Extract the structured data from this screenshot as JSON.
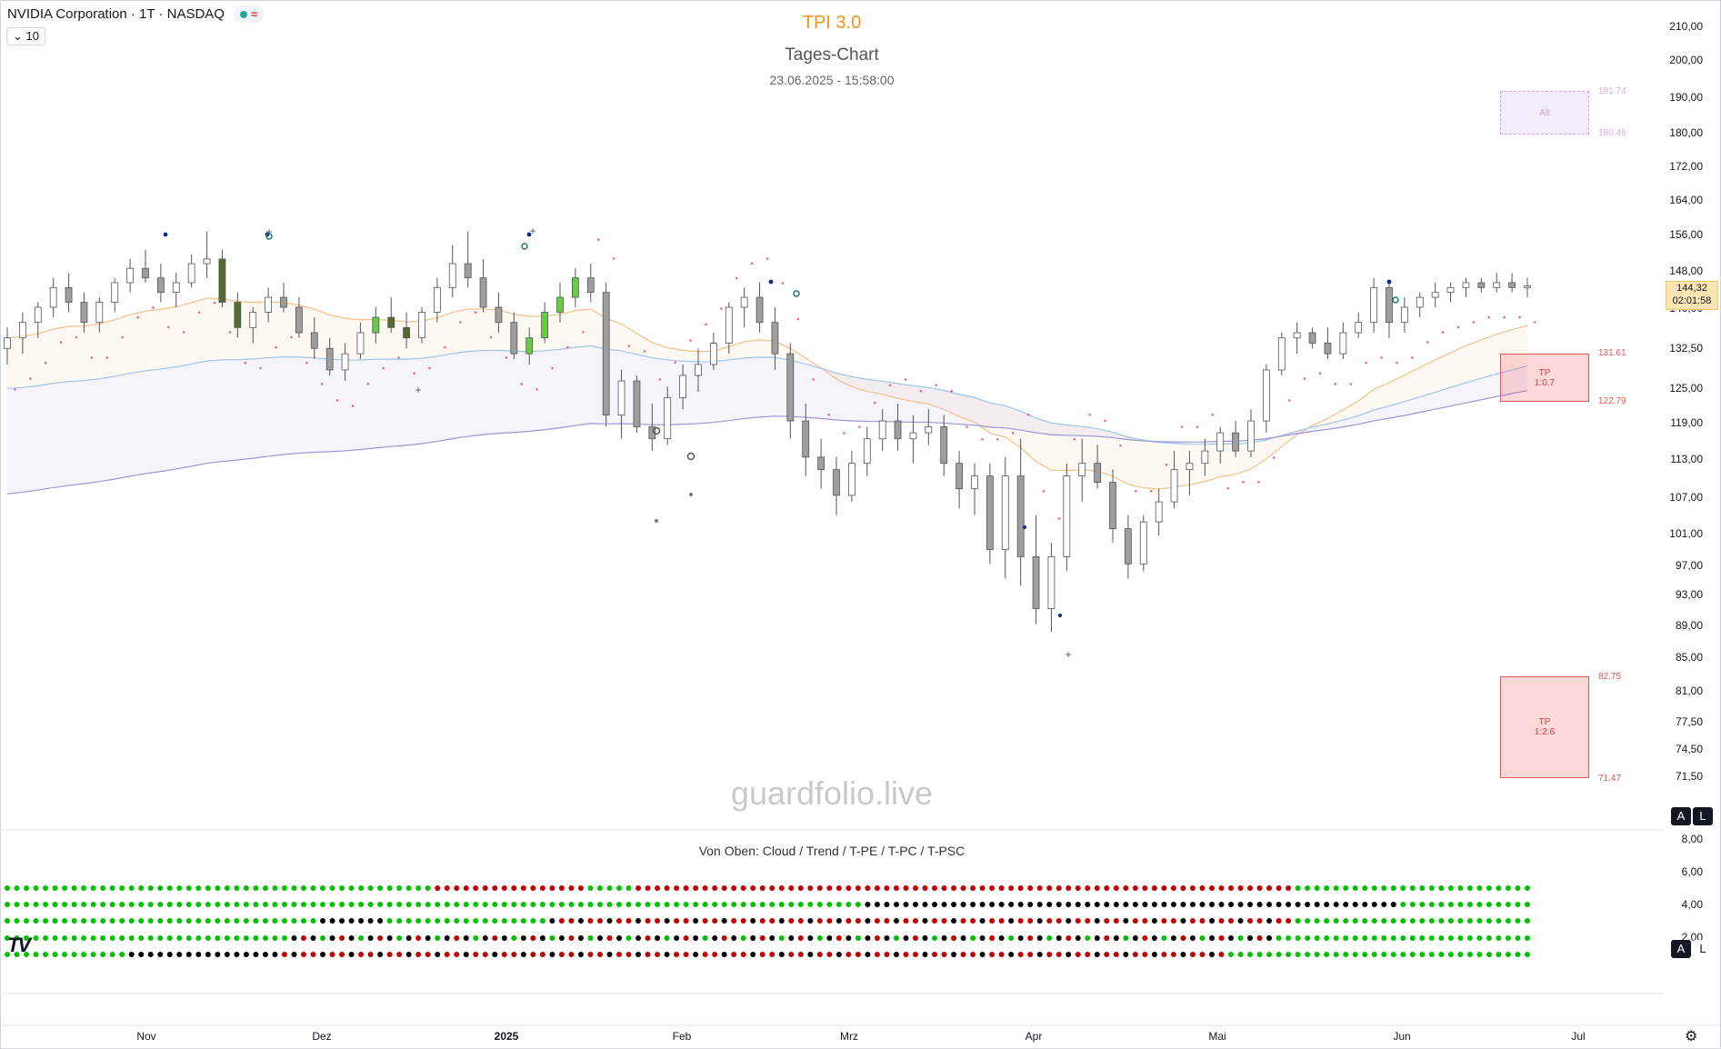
{
  "header": {
    "symbol": "NVIDIA Corporation · 1T · NASDAQ",
    "collapse_label": "10",
    "indicator_name": "TPI 3.0",
    "chart_kind": "Tages-Chart",
    "timestamp": "23.06.2025 - 15:58:00"
  },
  "watermark": "guardfolio.live",
  "indicator_pane": {
    "title": "Von Oben: Cloud / Trend / T-PE / T-PC / T-PSC",
    "y_ticks": [
      "8,00",
      "6,00",
      "4,00",
      "2,00"
    ]
  },
  "price_axis": {
    "ticks": [
      "210,00",
      "200,00",
      "190,00",
      "180,00",
      "172,00",
      "164,00",
      "156,00",
      "148,00",
      "140,00",
      "132,50",
      "125,00",
      "119,00",
      "113,00",
      "107,00",
      "101,00",
      "97,00",
      "93,00",
      "89,00",
      "85,00",
      "81,00",
      "77,50",
      "74,50",
      "71,50"
    ],
    "last_price": "144,32",
    "countdown": "02:01:58"
  },
  "time_axis": {
    "labels": [
      "Nov",
      "Dez",
      "2025",
      "Feb",
      "Mrz",
      "Apr",
      "Mai",
      "Jun",
      "Jul"
    ]
  },
  "zones": {
    "alt": {
      "label": "Alt",
      "top": "191.74",
      "bottom": "180.46"
    },
    "tp1": {
      "label": "TP\n1:0.7",
      "top": "131.61",
      "bottom": "122.79"
    },
    "tp2": {
      "label": "TP\n1:2.6",
      "top": "82.75",
      "bottom": "71.47"
    }
  },
  "buttons": {
    "auto": "A",
    "log": "L"
  },
  "colors": {
    "accent": "#f7931a",
    "green": "#00c000",
    "red": "#c00000",
    "black": "#000000",
    "candle_up": "#ffffff",
    "candle_down": "#9e9e9e",
    "bull_bar": "#66cc44",
    "bear_bar": "#556b2f",
    "trail": "#f06292",
    "ema_orange": "#f6bf8a",
    "ema_blue": "#9fc5e8",
    "ema_purple": "#9b95d9"
  },
  "chart_data": {
    "type": "candlestick",
    "title": "TPI 3.0",
    "ylim": [
      63,
      215
    ],
    "y_scale": "log",
    "candles_approx": [
      [
        132,
        136,
        129,
        134
      ],
      [
        134,
        139,
        131,
        137
      ],
      [
        137,
        141,
        134,
        140
      ],
      [
        140,
        146,
        138,
        144
      ],
      [
        144,
        147,
        139,
        141
      ],
      [
        141,
        143,
        135,
        137
      ],
      [
        137,
        142,
        135,
        141
      ],
      [
        141,
        146,
        139,
        145
      ],
      [
        145,
        150,
        143,
        148
      ],
      [
        148,
        152,
        145,
        146
      ],
      [
        146,
        149,
        141,
        143
      ],
      [
        143,
        147,
        140,
        145
      ],
      [
        145,
        151,
        144,
        149
      ],
      [
        149,
        156,
        146,
        150
      ],
      [
        150,
        152,
        140,
        141
      ],
      [
        141,
        143,
        134,
        136
      ],
      [
        136,
        140,
        133,
        139
      ],
      [
        139,
        144,
        137,
        142
      ],
      [
        142,
        145,
        139,
        140
      ],
      [
        140,
        142,
        134,
        135
      ],
      [
        135,
        138,
        130,
        132
      ],
      [
        132,
        134,
        127,
        128
      ],
      [
        128,
        133,
        126,
        131
      ],
      [
        131,
        137,
        130,
        135
      ],
      [
        135,
        140,
        133,
        138
      ],
      [
        138,
        142,
        135,
        136
      ],
      [
        136,
        139,
        132,
        134
      ],
      [
        134,
        140,
        133,
        139
      ],
      [
        139,
        146,
        137,
        144
      ],
      [
        144,
        153,
        142,
        149
      ],
      [
        149,
        156,
        144,
        146
      ],
      [
        146,
        150,
        139,
        140
      ],
      [
        140,
        143,
        135,
        137
      ],
      [
        137,
        139,
        130,
        131
      ],
      [
        131,
        136,
        129,
        134
      ],
      [
        134,
        141,
        133,
        139
      ],
      [
        139,
        145,
        137,
        142
      ],
      [
        142,
        148,
        140,
        146
      ],
      [
        146,
        149,
        141,
        143
      ],
      [
        143,
        145,
        118,
        120
      ],
      [
        120,
        128,
        116,
        126
      ],
      [
        126,
        127,
        117,
        118
      ],
      [
        118,
        122,
        114,
        116
      ],
      [
        116,
        125,
        115,
        123
      ],
      [
        123,
        129,
        121,
        127
      ],
      [
        127,
        132,
        124,
        129
      ],
      [
        129,
        135,
        128,
        133
      ],
      [
        133,
        141,
        131,
        140
      ],
      [
        140,
        144,
        136,
        142
      ],
      [
        142,
        145,
        135,
        137
      ],
      [
        137,
        140,
        128,
        131
      ],
      [
        131,
        133,
        116,
        119
      ],
      [
        119,
        122,
        110,
        113
      ],
      [
        113,
        116,
        108,
        111
      ],
      [
        111,
        113,
        104,
        107
      ],
      [
        107,
        114,
        106,
        112
      ],
      [
        112,
        118,
        110,
        116
      ],
      [
        116,
        121,
        114,
        119
      ],
      [
        119,
        122,
        114,
        116
      ],
      [
        116,
        120,
        112,
        117
      ],
      [
        117,
        121,
        115,
        118
      ],
      [
        118,
        120,
        110,
        112
      ],
      [
        112,
        114,
        105,
        108
      ],
      [
        108,
        112,
        104,
        110
      ],
      [
        110,
        112,
        97,
        99
      ],
      [
        99,
        113,
        95,
        110
      ],
      [
        110,
        116,
        94,
        98
      ],
      [
        98,
        104,
        89,
        91
      ],
      [
        91,
        100,
        88,
        98
      ],
      [
        98,
        112,
        96,
        110
      ],
      [
        110,
        116,
        106,
        112
      ],
      [
        112,
        115,
        108,
        109
      ],
      [
        109,
        111,
        100,
        102
      ],
      [
        102,
        104,
        95,
        97
      ],
      [
        97,
        104,
        96,
        103
      ],
      [
        103,
        108,
        101,
        106
      ],
      [
        106,
        114,
        105,
        111
      ],
      [
        111,
        114,
        107,
        112
      ],
      [
        112,
        116,
        110,
        114
      ],
      [
        114,
        118,
        112,
        117
      ],
      [
        117,
        119,
        113,
        114
      ],
      [
        114,
        121,
        113,
        119
      ],
      [
        119,
        129,
        117,
        128
      ],
      [
        128,
        135,
        127,
        134
      ],
      [
        134,
        137,
        131,
        135
      ],
      [
        135,
        136,
        132,
        133
      ],
      [
        133,
        136,
        130,
        131
      ],
      [
        131,
        137,
        130,
        135
      ],
      [
        135,
        139,
        134,
        137
      ],
      [
        137,
        146,
        135,
        144
      ],
      [
        144,
        145,
        134,
        137
      ],
      [
        137,
        142,
        135,
        140
      ],
      [
        140,
        143,
        138,
        142
      ],
      [
        142,
        145,
        140,
        143
      ],
      [
        143,
        145,
        141,
        144
      ],
      [
        144,
        146,
        142,
        145
      ],
      [
        145,
        146,
        143,
        144
      ],
      [
        144,
        147,
        143,
        145
      ],
      [
        145,
        147,
        143,
        144
      ],
      [
        144,
        146,
        142,
        144.32
      ]
    ],
    "indicator_rows": [
      "Cloud",
      "Trend",
      "T-PE",
      "T-PC",
      "T-PSC"
    ]
  }
}
